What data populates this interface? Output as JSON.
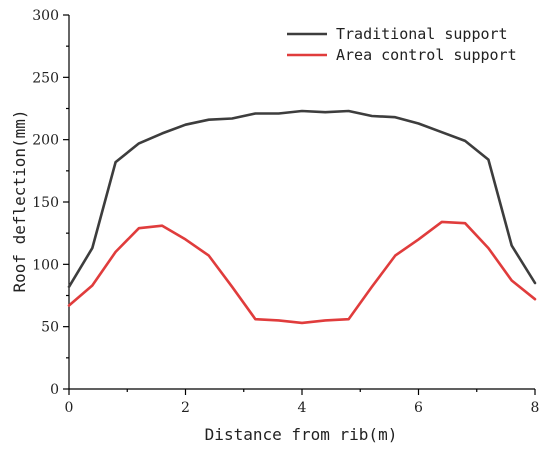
{
  "chart_data": {
    "type": "line",
    "title": "",
    "xlabel": "Distance from rib(m)",
    "ylabel": "Roof deflection(mm)",
    "xlim": [
      0,
      8
    ],
    "ylim": [
      0,
      300
    ],
    "xticks": [
      "0",
      "2",
      "4",
      "6",
      "8"
    ],
    "yticks": [
      "0",
      "50",
      "100",
      "150",
      "200",
      "250",
      "300"
    ],
    "grid": false,
    "legend_position": "top-right",
    "series": [
      {
        "name": "Traditional support",
        "color": "#3d3d3d",
        "x": [
          0,
          0.4,
          0.8,
          1.2,
          1.6,
          2.0,
          2.4,
          2.8,
          3.2,
          3.6,
          4.0,
          4.4,
          4.8,
          5.2,
          5.6,
          6.0,
          6.4,
          6.8,
          7.2,
          7.6,
          8.0
        ],
        "values": [
          82,
          113,
          182,
          197,
          205,
          212,
          216,
          217,
          221,
          221,
          223,
          222,
          223,
          219,
          218,
          213,
          206,
          199,
          184,
          115,
          85
        ]
      },
      {
        "name": "Area control support",
        "color": "#e03c3c",
        "x": [
          0,
          0.4,
          0.8,
          1.2,
          1.6,
          2.0,
          2.4,
          2.8,
          3.2,
          3.6,
          4.0,
          4.4,
          4.8,
          5.2,
          5.6,
          6.0,
          6.4,
          6.8,
          7.2,
          7.6,
          8.0
        ],
        "values": [
          67,
          83,
          110,
          129,
          131,
          120,
          107,
          82,
          56,
          55,
          53,
          55,
          56,
          82,
          107,
          120,
          134,
          133,
          113,
          87,
          72
        ]
      }
    ]
  }
}
